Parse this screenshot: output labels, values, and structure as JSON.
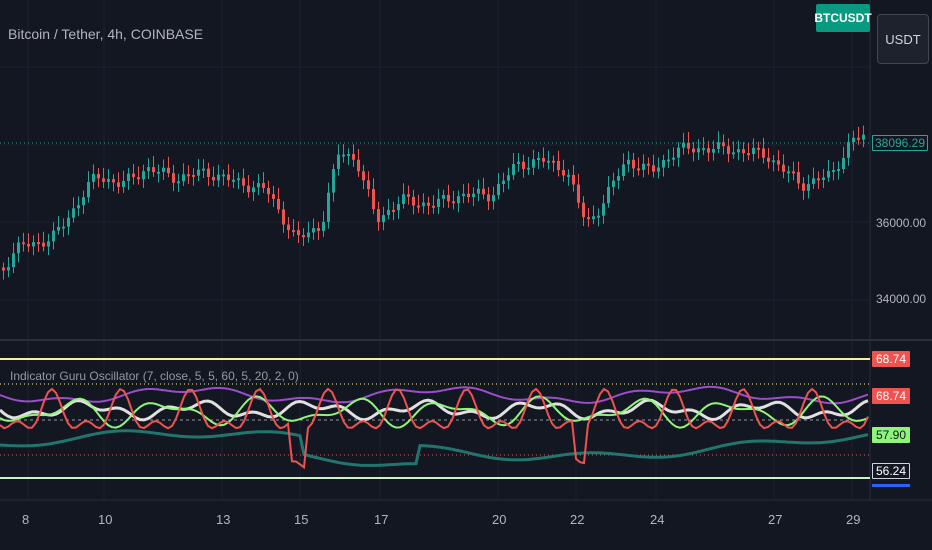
{
  "header": {
    "title": "Bitcoin / Tether, 4h, COINBASE",
    "symbol_badge": "BTCUSDT",
    "currency_button": "USDT"
  },
  "price_axis": {
    "labels": [
      "36000.00",
      "34000.00"
    ],
    "last_price": "38096.29"
  },
  "indicator": {
    "title": "Indicator Guru Oscillator (7, close, 5, 5, 60, 5, 20, 2, 0)",
    "tags": [
      "68.74",
      "68.74",
      "57.90",
      "56.24"
    ]
  },
  "time_axis": {
    "labels": [
      "8",
      "10",
      "13",
      "15",
      "17",
      "20",
      "22",
      "24",
      "27",
      "29"
    ]
  },
  "colors": {
    "background": "#131722",
    "up": "#26a69a",
    "down": "#ef5350",
    "badge": "#089981",
    "purple": "#9c4dcc",
    "lightgreen": "#8ef57a",
    "teal": "#22756d",
    "yellow_line": "#f5f39a"
  }
}
